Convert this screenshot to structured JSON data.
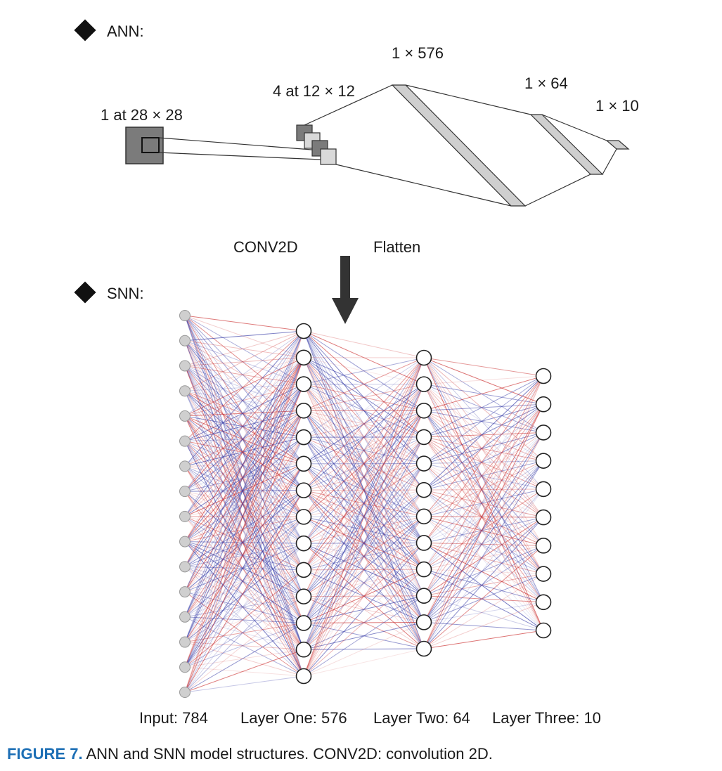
{
  "ann": {
    "marker_label": "ANN:",
    "input_label": "1 at 28 × 28",
    "conv_label": "4 at 12 × 12",
    "flatten_label": "1 × 576",
    "dense_label": "1 × 64",
    "output_label": "1 × 10"
  },
  "transition": {
    "left_label": "CONV2D",
    "right_label": "Flatten"
  },
  "snn": {
    "marker_label": "SNN:",
    "layers": [
      {
        "label": "Input: 784",
        "shown_nodes": 16
      },
      {
        "label": "Layer One: 576",
        "shown_nodes": 14
      },
      {
        "label": "Layer Two: 64",
        "shown_nodes": 12
      },
      {
        "label": "Layer Three: 10",
        "shown_nodes": 10
      }
    ],
    "colors": {
      "excitatory": "#cc3333",
      "inhibitory": "#3a3fa8",
      "input_node": "#cfcfcf",
      "node": "#ffffff"
    }
  },
  "caption": {
    "figure_number": "FIGURE 7.",
    "text": " ANN and SNN model structures. CONV2D: convolution 2D."
  }
}
